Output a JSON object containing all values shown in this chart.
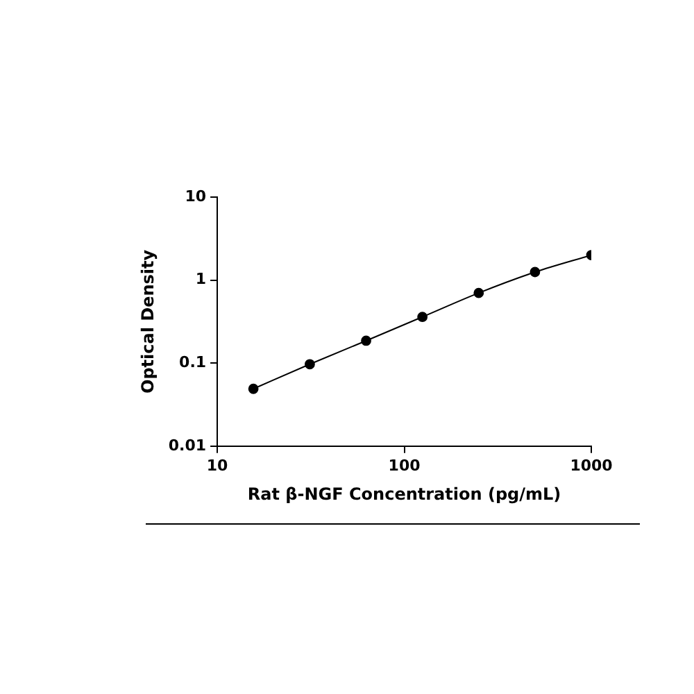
{
  "chart_data": {
    "type": "line",
    "xlabel": "Rat β-NGF Concentration (pg/mL)",
    "ylabel": "Optical Density",
    "x": [
      15.6,
      31.25,
      62.5,
      125,
      250,
      500,
      1000
    ],
    "series": [
      {
        "color": "#000000",
        "values": [
          0.049,
          0.097,
          0.186,
          0.36,
          0.7,
          1.25,
          2.0
        ]
      }
    ],
    "log": "xy",
    "xlim": [
      10,
      1000
    ],
    "xticks": [
      10,
      100,
      1000
    ],
    "ylim": [
      0.01,
      10
    ],
    "yticks": [
      0.01,
      0.1,
      1,
      10
    ],
    "grid": false,
    "legend": false,
    "marker": "circle",
    "line_style": "solid"
  }
}
